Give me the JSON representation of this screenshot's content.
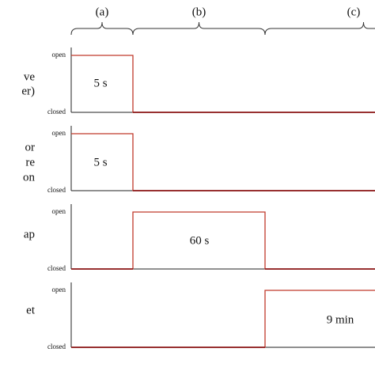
{
  "phases": [
    "(a)",
    "(b)",
    "(c)"
  ],
  "panels": [
    {
      "label_lines": [
        "ve",
        "er)"
      ],
      "open": "open",
      "closed": "closed",
      "duration": "5 s"
    },
    {
      "label_lines": [
        "or",
        "re",
        "on"
      ],
      "open": "open",
      "closed": "closed",
      "duration": "5 s"
    },
    {
      "label_lines": [
        "ap"
      ],
      "open": "open",
      "closed": "closed",
      "duration": "60 s"
    },
    {
      "label_lines": [
        "et"
      ],
      "open": "open",
      "closed": "closed",
      "duration": "9 min"
    }
  ]
}
